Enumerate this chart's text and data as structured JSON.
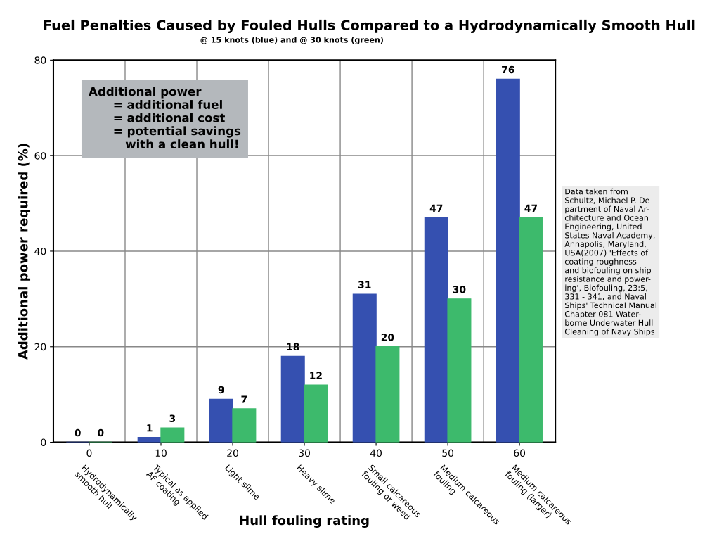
{
  "chart_data": {
    "type": "bar",
    "title": "Fuel Penalties Caused by Fouled Hulls Compared to a Hydrodynamically Smooth Hull",
    "subtitle": "@ 15 knots (blue) and @ 30 knots (green)",
    "xlabel": "Hull fouling rating",
    "ylabel": "Additional power required (%)",
    "x": [
      0,
      10,
      20,
      30,
      40,
      50,
      60
    ],
    "xlim": [
      -5,
      65
    ],
    "xticks": [
      0,
      10,
      20,
      30,
      40,
      50,
      60
    ],
    "series": [
      {
        "color": "#3550b0",
        "values": [
          0,
          1,
          9,
          18,
          31,
          47,
          76
        ]
      },
      {
        "color": "#3dba6c",
        "values": [
          0,
          3,
          7,
          12,
          20,
          30,
          47
        ]
      }
    ],
    "ylim": [
      0,
      80
    ],
    "yticks": [
      0,
      20,
      40,
      60,
      80
    ],
    "grid": true,
    "data_labels": true,
    "annotations": [
      "Hydrodynamically\nsmooth hull",
      "Typical as applied\nAF coating",
      "Light slime",
      "Heavy slime",
      "Small calcareous\nfouling or weed",
      "Medium calcareous\nfouling",
      "Medium calcareous\nfouling (larger)",
      "Additional power\n      = additional fuel\n      = additional cost\n      = potential savings\n         with a clean hull!",
      "Data taken from\nSchultz, Michael P. De-\npartment of Naval Ar-\nchitecture and Ocean\nEngineering, United\nStates Naval Academy,\nAnnapolis, Maryland,\nUSA(2007) 'Effects of\ncoating roughness\nand biofouling on ship\nresistance and power-\ning', Biofouling, 23:5,\n331 - 341, and Naval\nShips' Technical Manual\nChapter 081 Water-\nborne Underwater Hull\nCleaning of Navy Ships"
    ]
  }
}
